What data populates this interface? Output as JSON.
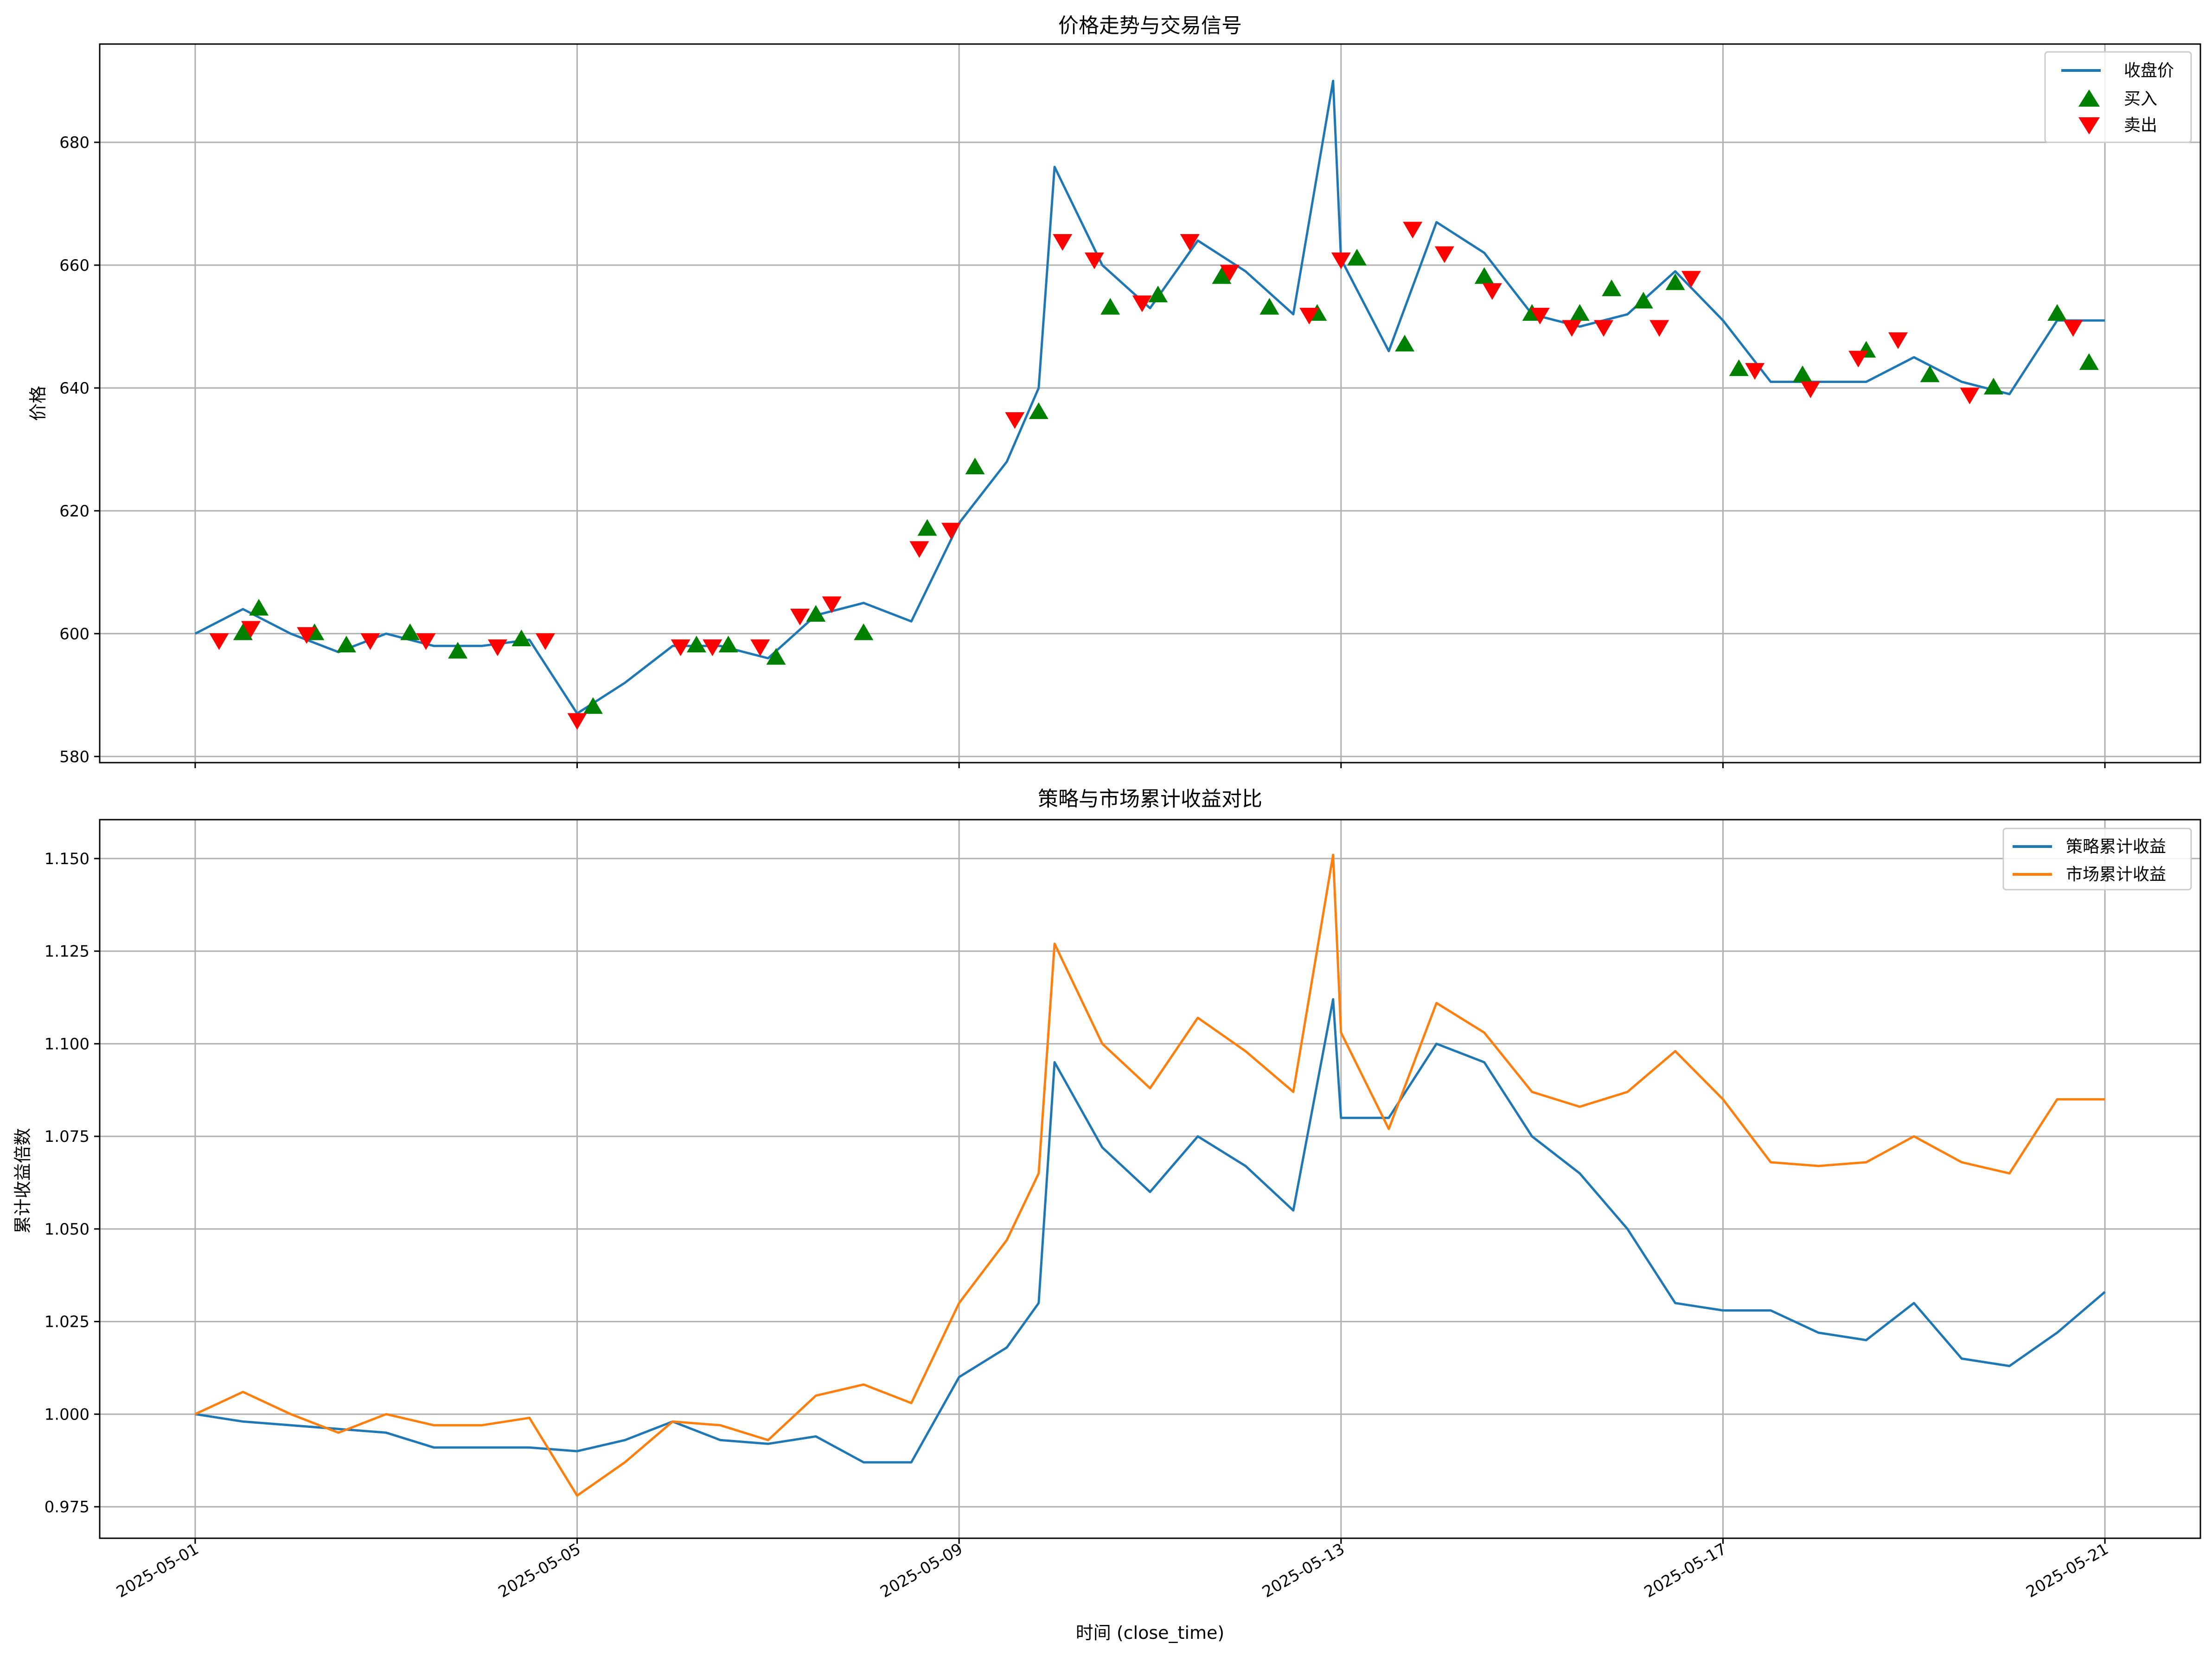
{
  "chart_data": [
    {
      "type": "line",
      "title": "价格走势与交易信号",
      "xlabel": "",
      "ylabel": "价格",
      "x_ticks": [
        "2025-05-01",
        "2025-05-05",
        "2025-05-09",
        "2025-05-13",
        "2025-05-17",
        "2025-05-21"
      ],
      "y_ticks": [
        580,
        600,
        620,
        640,
        660,
        680
      ],
      "xlim": [
        "2025-04-30T00:00",
        "2025-05-22T00:00"
      ],
      "ylim": [
        579,
        696
      ],
      "grid": true,
      "legend_position": "top-right",
      "colors": {
        "close": "#1f77b4",
        "buy": "#008000",
        "sell": "#ff0000"
      },
      "series": [
        {
          "name": "收盘价",
          "x": [
            "2025-05-01T00:00",
            "2025-05-01T12:00",
            "2025-05-02T00:00",
            "2025-05-02T12:00",
            "2025-05-03T00:00",
            "2025-05-03T12:00",
            "2025-05-04T00:00",
            "2025-05-04T12:00",
            "2025-05-05T00:00",
            "2025-05-05T12:00",
            "2025-05-06T00:00",
            "2025-05-06T12:00",
            "2025-05-07T00:00",
            "2025-05-07T12:00",
            "2025-05-08T00:00",
            "2025-05-08T12:00",
            "2025-05-09T00:00",
            "2025-05-09T12:00",
            "2025-05-09T20:00",
            "2025-05-10T00:00",
            "2025-05-10T12:00",
            "2025-05-11T00:00",
            "2025-05-11T12:00",
            "2025-05-12T00:00",
            "2025-05-12T12:00",
            "2025-05-12T22:00",
            "2025-05-13T00:00",
            "2025-05-13T12:00",
            "2025-05-14T00:00",
            "2025-05-14T12:00",
            "2025-05-15T00:00",
            "2025-05-15T12:00",
            "2025-05-16T00:00",
            "2025-05-16T12:00",
            "2025-05-17T00:00",
            "2025-05-17T12:00",
            "2025-05-18T00:00",
            "2025-05-18T12:00",
            "2025-05-19T00:00",
            "2025-05-19T12:00",
            "2025-05-20T00:00",
            "2025-05-20T12:00",
            "2025-05-21T00:00"
          ],
          "values": [
            600,
            604,
            600,
            597,
            600,
            598,
            598,
            599,
            587,
            592,
            598,
            598,
            596,
            603,
            605,
            602,
            618,
            628,
            640,
            676,
            660,
            653,
            664,
            659,
            652,
            690,
            661,
            646,
            667,
            662,
            652,
            650,
            652,
            659,
            651,
            641,
            641,
            641,
            645,
            641,
            639,
            651,
            651
          ]
        },
        {
          "name": "买入",
          "x": [
            "2025-05-01T12:00",
            "2025-05-01T16:00",
            "2025-05-02T06:00",
            "2025-05-02T14:00",
            "2025-05-03T06:00",
            "2025-05-03T18:00",
            "2025-05-04T10:00",
            "2025-05-05T04:00",
            "2025-05-06T06:00",
            "2025-05-06T14:00",
            "2025-05-07T02:00",
            "2025-05-07T12:00",
            "2025-05-08T00:00",
            "2025-05-08T16:00",
            "2025-05-09T04:00",
            "2025-05-09T20:00",
            "2025-05-10T14:00",
            "2025-05-11T02:00",
            "2025-05-11T18:00",
            "2025-05-12T06:00",
            "2025-05-12T18:00",
            "2025-05-13T04:00",
            "2025-05-13T16:00",
            "2025-05-14T12:00",
            "2025-05-15T00:00",
            "2025-05-15T12:00",
            "2025-05-15T20:00",
            "2025-05-16T04:00",
            "2025-05-16T12:00",
            "2025-05-17T04:00",
            "2025-05-17T20:00",
            "2025-05-18T12:00",
            "2025-05-19T04:00",
            "2025-05-19T20:00",
            "2025-05-20T12:00",
            "2025-05-20T20:00"
          ],
          "values": [
            600,
            604,
            600,
            598,
            600,
            597,
            599,
            588,
            598,
            598,
            596,
            603,
            600,
            617,
            627,
            636,
            653,
            655,
            658,
            653,
            652,
            661,
            647,
            658,
            652,
            652,
            656,
            654,
            657,
            643,
            642,
            646,
            642,
            640,
            652,
            644
          ]
        },
        {
          "name": "卖出",
          "x": [
            "2025-05-01T06:00",
            "2025-05-01T14:00",
            "2025-05-02T04:00",
            "2025-05-02T20:00",
            "2025-05-03T10:00",
            "2025-05-04T04:00",
            "2025-05-04T16:00",
            "2025-05-05T00:00",
            "2025-05-06T02:00",
            "2025-05-06T10:00",
            "2025-05-06T22:00",
            "2025-05-07T08:00",
            "2025-05-07T16:00",
            "2025-05-08T14:00",
            "2025-05-08T22:00",
            "2025-05-09T14:00",
            "2025-05-10T02:00",
            "2025-05-10T10:00",
            "2025-05-10T22:00",
            "2025-05-11T10:00",
            "2025-05-11T20:00",
            "2025-05-12T16:00",
            "2025-05-13T00:00",
            "2025-05-13T18:00",
            "2025-05-14T02:00",
            "2025-05-14T14:00",
            "2025-05-15T02:00",
            "2025-05-15T10:00",
            "2025-05-15T18:00",
            "2025-05-16T08:00",
            "2025-05-16T16:00",
            "2025-05-17T08:00",
            "2025-05-17T22:00",
            "2025-05-18T10:00",
            "2025-05-18T20:00",
            "2025-05-19T14:00",
            "2025-05-20T16:00"
          ],
          "values": [
            599,
            601,
            600,
            599,
            599,
            598,
            599,
            586,
            598,
            598,
            598,
            603,
            605,
            614,
            617,
            635,
            664,
            661,
            654,
            664,
            659,
            652,
            661,
            666,
            662,
            656,
            652,
            650,
            650,
            650,
            658,
            643,
            640,
            645,
            648,
            639,
            650
          ]
        }
      ]
    },
    {
      "type": "line",
      "title": "策略与市场累计收益对比",
      "xlabel": "时间 (close_time)",
      "ylabel": "累计收益倍数",
      "x_ticks": [
        "2025-05-01",
        "2025-05-05",
        "2025-05-09",
        "2025-05-13",
        "2025-05-17",
        "2025-05-21"
      ],
      "y_ticks": [
        "0.975",
        "1.000",
        "1.025",
        "1.050",
        "1.075",
        "1.100",
        "1.125",
        "1.150"
      ],
      "xlim": [
        "2025-04-30T00:00",
        "2025-05-22T00:00"
      ],
      "ylim": [
        0.9665,
        1.1605
      ],
      "grid": true,
      "legend_position": "top-right",
      "colors": {
        "strategy": "#1f77b4",
        "market": "#ff7f0e"
      },
      "series": [
        {
          "name": "策略累计收益",
          "x": [
            "2025-05-01T00:00",
            "2025-05-01T12:00",
            "2025-05-02T00:00",
            "2025-05-02T12:00",
            "2025-05-03T00:00",
            "2025-05-03T12:00",
            "2025-05-04T00:00",
            "2025-05-04T12:00",
            "2025-05-05T00:00",
            "2025-05-05T12:00",
            "2025-05-06T00:00",
            "2025-05-06T12:00",
            "2025-05-07T00:00",
            "2025-05-07T12:00",
            "2025-05-08T00:00",
            "2025-05-08T12:00",
            "2025-05-09T00:00",
            "2025-05-09T12:00",
            "2025-05-09T20:00",
            "2025-05-10T00:00",
            "2025-05-10T12:00",
            "2025-05-11T00:00",
            "2025-05-11T12:00",
            "2025-05-12T00:00",
            "2025-05-12T12:00",
            "2025-05-12T22:00",
            "2025-05-13T00:00",
            "2025-05-13T12:00",
            "2025-05-14T00:00",
            "2025-05-14T12:00",
            "2025-05-15T00:00",
            "2025-05-15T12:00",
            "2025-05-16T00:00",
            "2025-05-16T12:00",
            "2025-05-17T00:00",
            "2025-05-17T12:00",
            "2025-05-18T00:00",
            "2025-05-18T12:00",
            "2025-05-19T00:00",
            "2025-05-19T12:00",
            "2025-05-20T00:00",
            "2025-05-20T12:00",
            "2025-05-21T00:00"
          ],
          "values": [
            1.0,
            0.998,
            0.997,
            0.996,
            0.995,
            0.991,
            0.991,
            0.991,
            0.99,
            0.993,
            0.998,
            0.993,
            0.992,
            0.994,
            0.987,
            0.987,
            1.01,
            1.018,
            1.03,
            1.095,
            1.072,
            1.06,
            1.075,
            1.067,
            1.055,
            1.112,
            1.08,
            1.08,
            1.1,
            1.095,
            1.075,
            1.065,
            1.05,
            1.03,
            1.028,
            1.028,
            1.022,
            1.02,
            1.03,
            1.015,
            1.013,
            1.022,
            1.033
          ]
        },
        {
          "name": "市场累计收益",
          "x": [
            "2025-05-01T00:00",
            "2025-05-01T12:00",
            "2025-05-02T00:00",
            "2025-05-02T12:00",
            "2025-05-03T00:00",
            "2025-05-03T12:00",
            "2025-05-04T00:00",
            "2025-05-04T12:00",
            "2025-05-05T00:00",
            "2025-05-05T12:00",
            "2025-05-06T00:00",
            "2025-05-06T12:00",
            "2025-05-07T00:00",
            "2025-05-07T12:00",
            "2025-05-08T00:00",
            "2025-05-08T12:00",
            "2025-05-09T00:00",
            "2025-05-09T12:00",
            "2025-05-09T20:00",
            "2025-05-10T00:00",
            "2025-05-10T12:00",
            "2025-05-11T00:00",
            "2025-05-11T12:00",
            "2025-05-12T00:00",
            "2025-05-12T12:00",
            "2025-05-12T22:00",
            "2025-05-13T00:00",
            "2025-05-13T12:00",
            "2025-05-14T00:00",
            "2025-05-14T12:00",
            "2025-05-15T00:00",
            "2025-05-15T12:00",
            "2025-05-16T00:00",
            "2025-05-16T12:00",
            "2025-05-17T00:00",
            "2025-05-17T12:00",
            "2025-05-18T00:00",
            "2025-05-18T12:00",
            "2025-05-19T00:00",
            "2025-05-19T12:00",
            "2025-05-20T00:00",
            "2025-05-20T12:00",
            "2025-05-21T00:00"
          ],
          "values": [
            1.0,
            1.006,
            1.0,
            0.995,
            1.0,
            0.997,
            0.997,
            0.999,
            0.978,
            0.987,
            0.998,
            0.997,
            0.993,
            1.005,
            1.008,
            1.003,
            1.03,
            1.047,
            1.065,
            1.127,
            1.1,
            1.088,
            1.107,
            1.098,
            1.087,
            1.151,
            1.103,
            1.077,
            1.111,
            1.103,
            1.087,
            1.083,
            1.087,
            1.098,
            1.085,
            1.068,
            1.067,
            1.068,
            1.075,
            1.068,
            1.065,
            1.085,
            1.085
          ]
        }
      ]
    }
  ]
}
